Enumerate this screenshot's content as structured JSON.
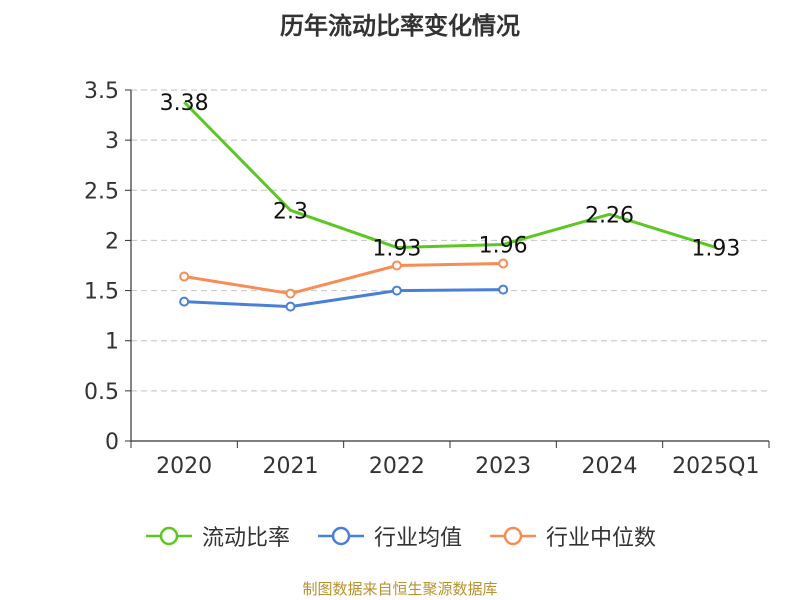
{
  "title": "历年流动比率变化情况",
  "source_note": "制图数据来自恒生聚源数据库",
  "colors": {
    "current_ratio": "#5cc723",
    "industry_mean": "#4a7fd8",
    "industry_median": "#f88c55",
    "grid": "#cccccc",
    "axis": "#333333",
    "source": "#b8912f"
  },
  "legend": [
    {
      "label": "流动比率",
      "color": "#5cc723"
    },
    {
      "label": "行业均值",
      "color": "#4a7fd8"
    },
    {
      "label": "行业中位数",
      "color": "#f88c55"
    }
  ],
  "chart_data": {
    "type": "line",
    "title": "历年流动比率变化情况",
    "categories": [
      "2020",
      "2021",
      "2022",
      "2023",
      "2024",
      "2025Q1"
    ],
    "y_ticks": [
      "0",
      "0.5",
      "1",
      "1.5",
      "2",
      "2.5",
      "3",
      "3.5"
    ],
    "ylim": [
      0,
      3.5
    ],
    "grid": true,
    "legend_position": "bottom",
    "series": [
      {
        "name": "流动比率",
        "color": "#5cc723",
        "values": [
          3.38,
          2.3,
          1.93,
          1.96,
          2.26,
          1.93
        ],
        "data_labels": [
          "3.38",
          "2.3",
          "1.93",
          "1.96",
          "2.26",
          "1.93"
        ],
        "show_markers": false
      },
      {
        "name": "行业均值",
        "color": "#4a7fd8",
        "values": [
          1.39,
          1.34,
          1.5,
          1.51,
          null,
          null
        ],
        "show_markers": true
      },
      {
        "name": "行业中位数",
        "color": "#f88c55",
        "values": [
          1.64,
          1.47,
          1.75,
          1.77,
          null,
          null
        ],
        "show_markers": true
      }
    ]
  }
}
